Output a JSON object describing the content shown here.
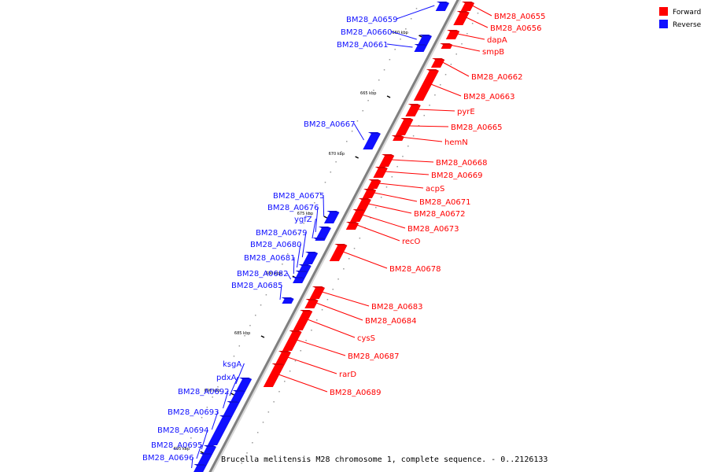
{
  "legend": {
    "forward_label": "Forward",
    "reverse_label": "Reverse",
    "forward_color": "#ff0000",
    "reverse_color": "#1010ff"
  },
  "caption": "Brucella melitensis M28 chromosome 1, complete sequence. - 0..2126133",
  "ticks": [
    "660 kbp",
    "665 kbp",
    "670 kbp",
    "675 kbp",
    "680 kbp",
    "685 kbp",
    "690 kbp",
    "695 kbp"
  ],
  "genes": [
    {
      "name": "BM28_A0655",
      "strand": "forward"
    },
    {
      "name": "BM28_A0656",
      "strand": "forward"
    },
    {
      "name": "dapA",
      "strand": "forward"
    },
    {
      "name": "smpB",
      "strand": "forward"
    },
    {
      "name": "BM28_A0659",
      "strand": "reverse"
    },
    {
      "name": "BM28_A0660",
      "strand": "reverse"
    },
    {
      "name": "BM28_A0661",
      "strand": "reverse"
    },
    {
      "name": "BM28_A0662",
      "strand": "forward"
    },
    {
      "name": "BM28_A0663",
      "strand": "forward"
    },
    {
      "name": "pyrE",
      "strand": "forward"
    },
    {
      "name": "BM28_A0665",
      "strand": "forward"
    },
    {
      "name": "hemN",
      "strand": "forward"
    },
    {
      "name": "BM28_A0667",
      "strand": "reverse"
    },
    {
      "name": "BM28_A0668",
      "strand": "forward"
    },
    {
      "name": "BM28_A0669",
      "strand": "forward"
    },
    {
      "name": "acpS",
      "strand": "forward"
    },
    {
      "name": "BM28_A0671",
      "strand": "forward"
    },
    {
      "name": "BM28_A0672",
      "strand": "forward"
    },
    {
      "name": "BM28_A0673",
      "strand": "forward"
    },
    {
      "name": "recO",
      "strand": "forward"
    },
    {
      "name": "BM28_A0675",
      "strand": "reverse"
    },
    {
      "name": "BM28_A0676",
      "strand": "reverse"
    },
    {
      "name": "ygfZ",
      "strand": "reverse"
    },
    {
      "name": "BM28_A0678",
      "strand": "forward"
    },
    {
      "name": "BM28_A0679",
      "strand": "reverse"
    },
    {
      "name": "BM28_A0680",
      "strand": "reverse"
    },
    {
      "name": "BM28_A0681",
      "strand": "reverse"
    },
    {
      "name": "BM28_A0682",
      "strand": "reverse"
    },
    {
      "name": "BM28_A0683",
      "strand": "forward"
    },
    {
      "name": "BM28_A0684",
      "strand": "forward"
    },
    {
      "name": "BM28_A0685",
      "strand": "reverse"
    },
    {
      "name": "cysS",
      "strand": "forward"
    },
    {
      "name": "BM28_A0687",
      "strand": "forward"
    },
    {
      "name": "rarD",
      "strand": "forward"
    },
    {
      "name": "BM28_A0689",
      "strand": "forward"
    },
    {
      "name": "ksgA",
      "strand": "reverse"
    },
    {
      "name": "pdxA",
      "strand": "reverse"
    },
    {
      "name": "BM28_A0692",
      "strand": "reverse"
    },
    {
      "name": "BM28_A0693",
      "strand": "reverse"
    },
    {
      "name": "BM28_A0694",
      "strand": "reverse"
    },
    {
      "name": "BM28_A0695",
      "strand": "reverse"
    },
    {
      "name": "BM28_A0696",
      "strand": "reverse"
    }
  ]
}
